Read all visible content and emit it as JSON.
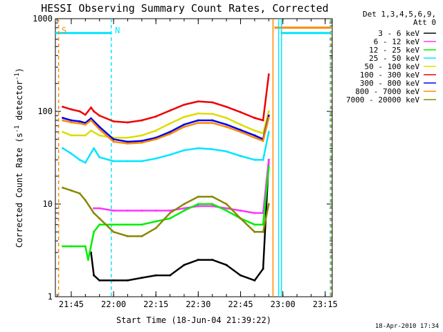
{
  "chart_data": {
    "type": "line",
    "title": "HESSI Observing Summary Count Rates, Corrected",
    "xlabel": "Start Time (18-Jun-04 21:39:22)",
    "ylabel_main": "Corrected Count Rate (s",
    "ylabel_sup1": "-1",
    "ylabel_mid": " detector",
    "ylabel_sup2": "-1",
    "ylabel_end": ")",
    "ylabel": "Corrected Count Rate (s^-1 detector^-1)",
    "yscale": "log",
    "ylim": [
      1,
      1000
    ],
    "xlim": [
      "21:39:22",
      "23:17:30"
    ],
    "x_ticks": [
      "21:45",
      "22:00",
      "22:15",
      "22:30",
      "22:45",
      "23:00",
      "23:15"
    ],
    "y_ticks": [
      "1",
      "10",
      "100",
      "1000"
    ],
    "legend_header_1": "Det 1,3,4,5,6,9,",
    "legend_header_2": "Att 0",
    "legend_position": "right",
    "footer_date": "18-Apr-2010 17:34",
    "annotations": [
      {
        "text": "S",
        "x": "21:41:30",
        "color": "#ff8800"
      },
      {
        "text": "N",
        "x": "22:00:30",
        "color": "#00e5ff"
      }
    ],
    "marker_lines": [
      {
        "x": "21:40:30",
        "color": "#ff8800",
        "style": "dashed"
      },
      {
        "x": "21:59:10",
        "color": "#00e5ff",
        "style": "dashed"
      },
      {
        "x": "22:56:30",
        "color": "#ff8800",
        "style": "solid"
      },
      {
        "x": "22:58:30",
        "color": "#00e5ff",
        "style": "solid"
      },
      {
        "x": "22:59:30",
        "color": "#00e5ff",
        "style": "solid"
      },
      {
        "x": "23:16:50",
        "color": "#00e5ff",
        "style": "dashed"
      },
      {
        "x": "23:17:10",
        "color": "#ff8800",
        "style": "dashed"
      }
    ],
    "bands": [
      {
        "color": "#00e5ff",
        "y": 700,
        "segments": [
          [
            "21:39:22",
            "21:59:10"
          ],
          [
            "22:59:30",
            "23:17:30"
          ]
        ]
      },
      {
        "color": "#ff8800",
        "y": 800,
        "segments": [
          [
            "22:57:00",
            "23:17:30"
          ]
        ]
      }
    ],
    "series": [
      {
        "name": "3 - 6 keV",
        "color": "#000000",
        "x": [
          "21:52",
          "21:53",
          "21:55",
          "22:00",
          "22:05",
          "22:10",
          "22:15",
          "22:20",
          "22:25",
          "22:30",
          "22:35",
          "22:40",
          "22:45",
          "22:50",
          "22:53",
          "22:55"
        ],
        "y": [
          3,
          1.7,
          1.5,
          1.5,
          1.5,
          1.6,
          1.7,
          1.7,
          2.2,
          2.5,
          2.5,
          2.2,
          1.7,
          1.5,
          2,
          30
        ]
      },
      {
        "name": "6 - 12 keV",
        "color": "#ff33ff",
        "x": [
          "21:53",
          "21:55",
          "22:00",
          "22:05",
          "22:10",
          "22:15",
          "22:20",
          "22:25",
          "22:30",
          "22:35",
          "22:40",
          "22:45",
          "22:50",
          "22:53",
          "22:55"
        ],
        "y": [
          9,
          9,
          8.5,
          8.5,
          8.5,
          8.5,
          8.5,
          9,
          9.5,
          9.5,
          9,
          8.5,
          8,
          8,
          30
        ]
      },
      {
        "name": "12 - 25 keV",
        "color": "#00ee00",
        "x": [
          "21:42",
          "21:45",
          "21:50",
          "21:51",
          "21:53",
          "21:55",
          "22:00",
          "22:05",
          "22:10",
          "22:15",
          "22:20",
          "22:25",
          "22:30",
          "22:35",
          "22:40",
          "22:45",
          "22:50",
          "22:53",
          "22:55"
        ],
        "y": [
          3.5,
          3.5,
          3.5,
          2.5,
          5,
          6,
          6,
          6,
          6,
          6.5,
          7,
          8.5,
          10,
          10,
          8.5,
          7,
          6,
          6,
          25
        ]
      },
      {
        "name": "25 - 50 keV",
        "color": "#00e5ff",
        "x": [
          "21:42",
          "21:45",
          "21:48",
          "21:50",
          "21:53",
          "21:55",
          "22:00",
          "22:05",
          "22:10",
          "22:15",
          "22:20",
          "22:25",
          "22:30",
          "22:35",
          "22:40",
          "22:45",
          "22:50",
          "22:53",
          "22:55"
        ],
        "y": [
          40,
          35,
          30,
          28,
          40,
          32,
          29,
          29,
          29,
          31,
          34,
          38,
          40,
          39,
          37,
          33,
          30,
          30,
          60
        ]
      },
      {
        "name": "50 - 100 keV",
        "color": "#dddd00",
        "x": [
          "21:42",
          "21:45",
          "21:48",
          "21:50",
          "21:52",
          "21:55",
          "22:00",
          "22:05",
          "22:10",
          "22:15",
          "22:20",
          "22:25",
          "22:30",
          "22:35",
          "22:40",
          "22:45",
          "22:50",
          "22:53",
          "22:55"
        ],
        "y": [
          60,
          55,
          55,
          55,
          62,
          55,
          52,
          52,
          55,
          62,
          74,
          87,
          95,
          94,
          85,
          72,
          62,
          58,
          100
        ]
      },
      {
        "name": "100 - 300 keV",
        "color": "#ee0000",
        "x": [
          "21:42",
          "21:45",
          "21:48",
          "21:50",
          "21:52",
          "21:53",
          "21:55",
          "22:00",
          "22:05",
          "22:10",
          "22:15",
          "22:20",
          "22:25",
          "22:30",
          "22:35",
          "22:40",
          "22:45",
          "22:50",
          "22:53",
          "22:55"
        ],
        "y": [
          112,
          105,
          100,
          92,
          110,
          100,
          90,
          78,
          76,
          80,
          88,
          102,
          118,
          128,
          125,
          112,
          98,
          85,
          80,
          250
        ]
      },
      {
        "name": "300 - 800 keV",
        "color": "#0000ee",
        "x": [
          "21:42",
          "21:45",
          "21:48",
          "21:50",
          "21:52",
          "21:55",
          "22:00",
          "22:05",
          "22:10",
          "22:15",
          "22:20",
          "22:25",
          "22:30",
          "22:35",
          "22:40",
          "22:45",
          "22:50",
          "22:53",
          "22:55"
        ],
        "y": [
          85,
          80,
          78,
          75,
          84,
          68,
          50,
          47,
          48,
          52,
          60,
          72,
          80,
          80,
          72,
          63,
          55,
          50,
          90
        ]
      },
      {
        "name": "800 - 7000 keV",
        "color": "#ff8800",
        "x": [
          "21:42",
          "21:45",
          "21:48",
          "21:50",
          "21:52",
          "21:55",
          "22:00",
          "22:05",
          "22:10",
          "22:15",
          "22:20",
          "22:25",
          "22:30",
          "22:35",
          "22:40",
          "22:45",
          "22:50",
          "22:53",
          "22:55"
        ],
        "y": [
          80,
          76,
          74,
          72,
          80,
          64,
          47,
          45,
          46,
          50,
          57,
          68,
          75,
          75,
          68,
          60,
          52,
          48,
          85
        ]
      },
      {
        "name": "7000 - 20000 keV",
        "color": "#888800",
        "x": [
          "21:42",
          "21:45",
          "21:48",
          "21:50",
          "21:53",
          "21:55",
          "22:00",
          "22:05",
          "22:10",
          "22:15",
          "22:20",
          "22:25",
          "22:30",
          "22:35",
          "22:40",
          "22:45",
          "22:50",
          "22:53",
          "22:55"
        ],
        "y": [
          15,
          14,
          13,
          11,
          8,
          7,
          5,
          4.5,
          4.5,
          5.5,
          8,
          10,
          12,
          12,
          10,
          7,
          5,
          5,
          10
        ]
      }
    ]
  }
}
